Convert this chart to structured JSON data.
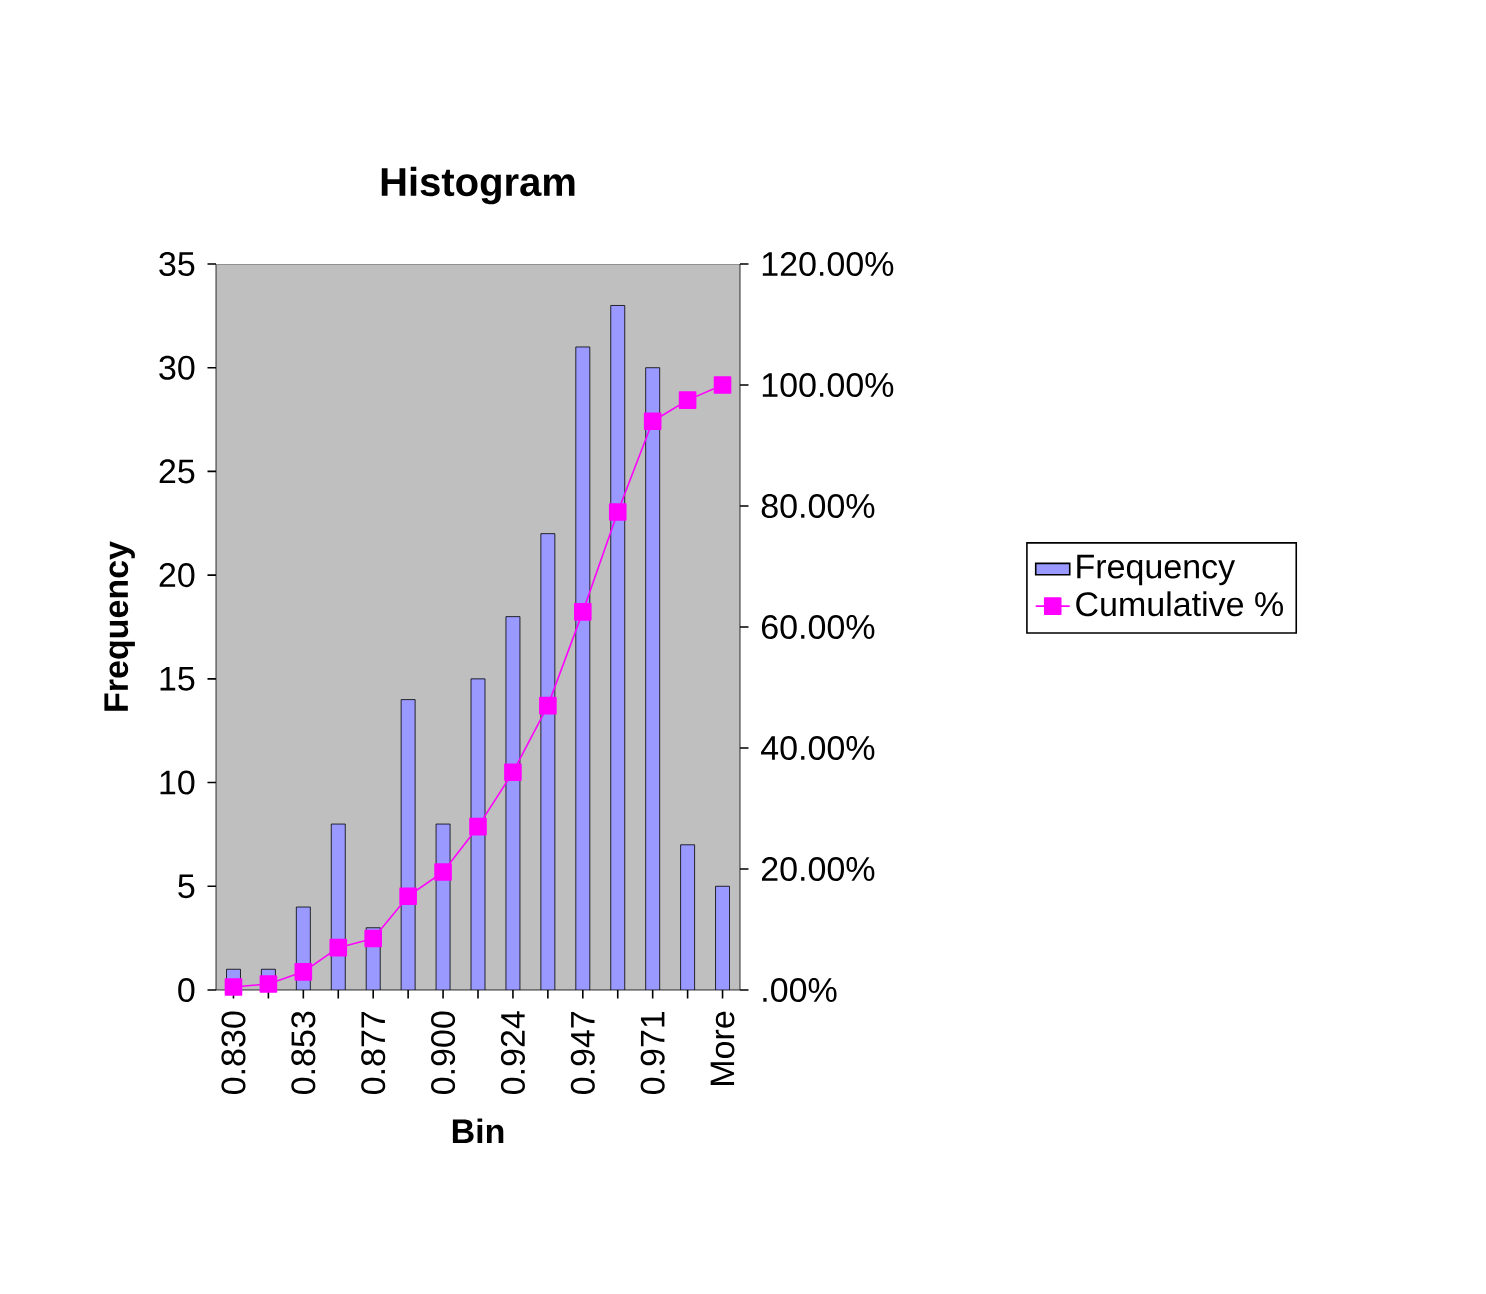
{
  "chart_data": {
    "type": "bar",
    "title": "Histogram",
    "xlabel": "Bin",
    "ylabel": "Frequency",
    "categories": [
      "0.830",
      null,
      "0.853",
      null,
      "0.877",
      null,
      "0.900",
      null,
      "0.924",
      null,
      "0.947",
      null,
      "0.971",
      null,
      "More"
    ],
    "series": [
      {
        "name": "Frequency",
        "color": "#9999ff",
        "values": [
          1,
          1,
          4,
          8,
          3,
          14,
          8,
          15,
          18,
          22,
          31,
          33,
          30,
          7,
          5
        ]
      },
      {
        "name": "Cumulative %",
        "type": "line",
        "axis": "y2",
        "color": "#ff00ff",
        "marker": "square",
        "values": [
          0.5,
          1,
          3,
          7,
          8.5,
          15.5,
          19.5,
          27,
          36,
          47,
          62.5,
          79,
          94,
          97.5,
          100
        ]
      }
    ],
    "ylim": [
      0,
      35
    ],
    "yticks": [
      0,
      5,
      10,
      15,
      20,
      25,
      30,
      35
    ],
    "y2lim": [
      0,
      120
    ],
    "y2ticks": [
      {
        "value": 0,
        "label": ".00%"
      },
      {
        "value": 20,
        "label": "20.00%"
      },
      {
        "value": 40,
        "label": "40.00%"
      },
      {
        "value": 60,
        "label": "60.00%"
      },
      {
        "value": 80,
        "label": "80.00%"
      },
      {
        "value": 100,
        "label": "100.00%"
      },
      {
        "value": 120,
        "label": "120.00%"
      }
    ],
    "legend": "right",
    "grid": false
  }
}
